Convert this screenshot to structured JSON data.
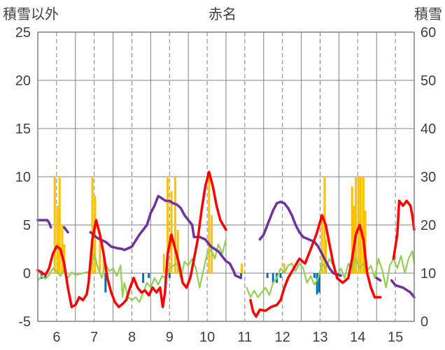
{
  "chart_data": {
    "type": "line",
    "title": "赤名",
    "left_axis_label": "積雪以外",
    "right_axis_label": "積雪",
    "ylim": [
      -5,
      25
    ],
    "yticks": [
      -5,
      0,
      5,
      10,
      15,
      20,
      25
    ],
    "y2lim": [
      0,
      60
    ],
    "y2ticks": [
      0,
      10,
      20,
      30,
      40,
      50,
      60
    ],
    "xlim": [
      5.5,
      15.5
    ],
    "x_tick_labels": [
      "6",
      "7",
      "8",
      "9",
      "10",
      "11",
      "12",
      "13",
      "14",
      "15"
    ],
    "x_tick_values": [
      6,
      7,
      8,
      9,
      10,
      11,
      12,
      13,
      14,
      15
    ],
    "grid": true,
    "colors": {
      "temperature": "#ff0000",
      "series_green": "#92d050",
      "snow_depth": "#7030a0",
      "bars_positive": "#ffc000",
      "bars_negative": "#0070c0",
      "grid": "#808080",
      "axis_text": "#404040"
    },
    "series": [
      {
        "key": "temperature",
        "axis": "left",
        "points": [
          [
            5.5,
            0.3
          ],
          [
            5.6,
            0.1
          ],
          [
            5.7,
            -0.2
          ],
          [
            5.8,
            0.5
          ],
          [
            5.9,
            2.0
          ],
          [
            6.0,
            2.8
          ],
          [
            6.1,
            2.5
          ],
          [
            6.2,
            1.0
          ],
          [
            6.3,
            -1.5
          ],
          [
            6.4,
            -3.5
          ],
          [
            6.5,
            -3.3
          ],
          [
            6.6,
            -2.5
          ],
          [
            6.7,
            -2.8
          ],
          [
            6.8,
            -2.2
          ],
          [
            6.85,
            -1.0
          ],
          [
            6.95,
            3.5
          ],
          [
            7.05,
            5.5
          ],
          [
            7.15,
            4.0
          ],
          [
            7.25,
            2.0
          ],
          [
            7.35,
            -0.5
          ],
          [
            7.45,
            -2.0
          ],
          [
            7.55,
            -3.0
          ],
          [
            7.65,
            -3.5
          ],
          [
            7.75,
            -3.2
          ],
          [
            7.85,
            -2.8
          ],
          [
            7.95,
            -1.5
          ],
          [
            8.05,
            -0.5
          ],
          [
            8.15,
            -1.5
          ],
          [
            8.25,
            -2.0
          ],
          [
            8.35,
            -1.8
          ],
          [
            8.45,
            -2.3
          ],
          [
            8.55,
            -1.5
          ],
          [
            8.65,
            -2.0
          ],
          [
            8.75,
            -1.5
          ],
          [
            8.82,
            -3.5
          ],
          [
            8.88,
            -2.0
          ],
          [
            8.95,
            2.0
          ],
          [
            9.05,
            4.0
          ],
          [
            9.15,
            2.5
          ],
          [
            9.25,
            1.0
          ],
          [
            9.35,
            -1.0
          ],
          [
            9.45,
            -1.5
          ],
          [
            9.55,
            -0.5
          ],
          [
            9.65,
            1.5
          ],
          [
            9.75,
            3.5
          ],
          [
            9.85,
            6.5
          ],
          [
            9.95,
            9.0
          ],
          [
            10.05,
            10.5
          ],
          [
            10.15,
            9.0
          ],
          [
            10.25,
            7.0
          ],
          [
            10.35,
            5.5
          ],
          [
            10.5,
            4.5
          ],
          [
            11.15,
            -2.8
          ],
          [
            11.22,
            -4.0
          ],
          [
            11.3,
            -4.5
          ],
          [
            11.4,
            -3.8
          ],
          [
            11.55,
            -3.9
          ],
          [
            11.7,
            -3.5
          ],
          [
            11.85,
            -3.3
          ],
          [
            11.95,
            -2.8
          ],
          [
            12.05,
            -1.5
          ],
          [
            12.15,
            -0.5
          ],
          [
            12.3,
            0.5
          ],
          [
            12.45,
            1.5
          ],
          [
            12.6,
            1.0
          ],
          [
            12.75,
            2.5
          ],
          [
            12.9,
            4.0
          ],
          [
            13.05,
            6.0
          ],
          [
            13.15,
            5.0
          ],
          [
            13.25,
            3.0
          ],
          [
            13.35,
            1.0
          ],
          [
            13.45,
            -0.5
          ],
          [
            13.6,
            -1.0
          ],
          [
            13.75,
            -0.5
          ],
          [
            13.85,
            1.5
          ],
          [
            13.95,
            4.0
          ],
          [
            14.05,
            5.0
          ],
          [
            14.15,
            3.5
          ],
          [
            14.25,
            0.0
          ],
          [
            14.35,
            -1.5
          ],
          [
            14.45,
            -2.5
          ],
          [
            14.6,
            -2.5
          ],
          [
            14.95,
            1.5
          ],
          [
            15.05,
            4.0
          ],
          [
            15.1,
            7.5
          ],
          [
            15.2,
            7.0
          ],
          [
            15.3,
            7.5
          ],
          [
            15.4,
            7.0
          ],
          [
            15.45,
            6.0
          ],
          [
            15.5,
            4.5
          ]
        ]
      },
      {
        "key": "series_green",
        "axis": "left",
        "points": [
          [
            5.5,
            -0.8
          ],
          [
            5.6,
            -0.3
          ],
          [
            5.7,
            -0.6
          ],
          [
            5.8,
            -0.2
          ],
          [
            5.9,
            0.5
          ],
          [
            6.0,
            0.2
          ],
          [
            6.1,
            -0.3
          ],
          [
            6.2,
            0.3
          ],
          [
            6.3,
            -0.5
          ],
          [
            6.4,
            0.1
          ],
          [
            6.5,
            -0.2
          ],
          [
            6.7,
            0.0
          ],
          [
            6.9,
            0.2
          ],
          [
            7.0,
            2.0
          ],
          [
            7.1,
            0.5
          ],
          [
            7.2,
            -0.5
          ],
          [
            7.3,
            1.0
          ],
          [
            7.4,
            0.2
          ],
          [
            7.5,
            0.5
          ],
          [
            7.6,
            -0.3
          ],
          [
            7.7,
            0.8
          ],
          [
            7.75,
            -2.5
          ],
          [
            7.8,
            -1.0
          ],
          [
            7.9,
            -2.5
          ],
          [
            8.0,
            -2.8
          ],
          [
            8.1,
            -2.5
          ],
          [
            8.2,
            -3.0
          ],
          [
            8.3,
            -2.0
          ],
          [
            8.4,
            -1.0
          ],
          [
            8.5,
            -1.5
          ],
          [
            8.6,
            -0.5
          ],
          [
            8.7,
            -1.2
          ],
          [
            8.8,
            -0.3
          ],
          [
            8.9,
            -0.5
          ],
          [
            9.0,
            0.5
          ],
          [
            9.1,
            0.8
          ],
          [
            9.2,
            1.0
          ],
          [
            9.3,
            -0.5
          ],
          [
            9.4,
            1.2
          ],
          [
            9.5,
            0.8
          ],
          [
            9.6,
            1.5
          ],
          [
            9.7,
            0.5
          ],
          [
            9.8,
            -1.5
          ],
          [
            9.9,
            0.3
          ],
          [
            10.0,
            2.0
          ],
          [
            10.1,
            2.5
          ],
          [
            10.2,
            1.5
          ],
          [
            10.3,
            3.0
          ],
          [
            10.4,
            2.0
          ],
          [
            10.5,
            3.5
          ],
          [
            11.05,
            -1.5
          ],
          [
            11.15,
            -2.5
          ],
          [
            11.25,
            -1.8
          ],
          [
            11.35,
            -2.5
          ],
          [
            11.45,
            -2.0
          ],
          [
            11.55,
            -1.5
          ],
          [
            11.65,
            -2.3
          ],
          [
            11.75,
            -1.0
          ],
          [
            11.85,
            -0.5
          ],
          [
            11.95,
            0.5
          ],
          [
            12.05,
            0.0
          ],
          [
            12.15,
            0.8
          ],
          [
            12.25,
            1.0
          ],
          [
            12.35,
            0.2
          ],
          [
            12.45,
            1.0
          ],
          [
            12.55,
            0.5
          ],
          [
            12.65,
            -1.0
          ],
          [
            12.75,
            -0.3
          ],
          [
            12.85,
            -1.2
          ],
          [
            12.95,
            -0.5
          ],
          [
            13.05,
            1.0
          ],
          [
            13.15,
            0.5
          ],
          [
            13.25,
            1.5
          ],
          [
            13.35,
            0.8
          ],
          [
            13.45,
            -0.3
          ],
          [
            13.55,
            0.5
          ],
          [
            13.65,
            -0.5
          ],
          [
            13.75,
            1.0
          ],
          [
            13.85,
            0.3
          ],
          [
            13.95,
            1.5
          ],
          [
            14.05,
            0.5
          ],
          [
            14.15,
            1.0
          ],
          [
            14.25,
            0.2
          ],
          [
            14.35,
            0.8
          ],
          [
            14.45,
            -0.5
          ],
          [
            14.55,
            1.5
          ],
          [
            14.65,
            0.3
          ],
          [
            14.75,
            -1.5
          ],
          [
            14.85,
            0.8
          ],
          [
            14.95,
            1.5
          ],
          [
            15.05,
            0.5
          ],
          [
            15.15,
            1.8
          ],
          [
            15.25,
            0.0
          ],
          [
            15.35,
            1.5
          ],
          [
            15.45,
            2.3
          ],
          [
            15.5,
            1.0
          ]
        ]
      },
      {
        "key": "snow_depth",
        "axis": "right",
        "points": [
          [
            5.5,
            21
          ],
          [
            5.75,
            21
          ],
          [
            5.8,
            20.5
          ],
          [
            5.85,
            19.5
          ],
          [
            6.2,
            19.5
          ],
          [
            6.3,
            18.5
          ],
          [
            6.9,
            18.5
          ],
          [
            7.05,
            17.5
          ],
          [
            7.15,
            17.0
          ],
          [
            7.3,
            16.5
          ],
          [
            7.45,
            15.5
          ],
          [
            7.6,
            15.2
          ],
          [
            7.75,
            15.0
          ],
          [
            7.8,
            14.8
          ],
          [
            8.0,
            15.5
          ],
          [
            8.2,
            18.0
          ],
          [
            8.4,
            20.0
          ],
          [
            8.5,
            22.5
          ],
          [
            8.6,
            24.0
          ],
          [
            8.7,
            26.0
          ],
          [
            8.8,
            25.5
          ],
          [
            8.9,
            25.0
          ],
          [
            9.0,
            25.0
          ],
          [
            9.1,
            24.5
          ],
          [
            9.2,
            24.2
          ],
          [
            9.3,
            23.5
          ],
          [
            9.4,
            22.0
          ],
          [
            9.5,
            21.0
          ],
          [
            9.55,
            20.5
          ],
          [
            9.6,
            20.0
          ],
          [
            9.65,
            17.5
          ],
          [
            9.8,
            17.5
          ],
          [
            9.95,
            17.0
          ],
          [
            10.0,
            16.5
          ],
          [
            10.1,
            15.5
          ],
          [
            10.3,
            14.5
          ],
          [
            10.45,
            13.0
          ],
          [
            10.5,
            12.5
          ],
          [
            10.6,
            12.0
          ],
          [
            10.7,
            10.5
          ],
          [
            10.75,
            9.5
          ],
          [
            10.9,
            9.0
          ],
          [
            11.4,
            17.0
          ],
          [
            11.5,
            18.0
          ],
          [
            11.65,
            21.0
          ],
          [
            11.75,
            23.0
          ],
          [
            11.85,
            24.5
          ],
          [
            11.95,
            24.8
          ],
          [
            12.05,
            24.5
          ],
          [
            12.15,
            23.5
          ],
          [
            12.25,
            22.0
          ],
          [
            12.35,
            20.0
          ],
          [
            12.45,
            18.5
          ],
          [
            12.55,
            17.5
          ],
          [
            12.7,
            17.0
          ],
          [
            12.85,
            16.5
          ],
          [
            12.95,
            15.5
          ],
          [
            13.05,
            14.0
          ],
          [
            13.15,
            12.5
          ],
          [
            13.25,
            11.0
          ],
          [
            13.35,
            10.0
          ],
          [
            13.55,
            9.5
          ],
          [
            14.0,
            9.0
          ],
          [
            14.5,
            9.0
          ],
          [
            14.6,
            8.5
          ],
          [
            14.9,
            8.5
          ],
          [
            15.0,
            7.5
          ],
          [
            15.2,
            7.0
          ],
          [
            15.4,
            6.0
          ],
          [
            15.5,
            5.0
          ]
        ]
      }
    ],
    "bars": {
      "axis": "left",
      "positive": [
        [
          5.95,
          10.0
        ],
        [
          6.02,
          7.0
        ],
        [
          6.08,
          10.0
        ],
        [
          6.15,
          5.0
        ],
        [
          6.2,
          3.0
        ],
        [
          6.95,
          10.0
        ],
        [
          7.02,
          8.0
        ],
        [
          7.15,
          3.5
        ],
        [
          7.25,
          1.5
        ],
        [
          8.85,
          2.0
        ],
        [
          8.95,
          10.0
        ],
        [
          9.05,
          8.5
        ],
        [
          9.15,
          10.0
        ],
        [
          9.22,
          4.5
        ],
        [
          10.05,
          10.0
        ],
        [
          10.12,
          6.0
        ],
        [
          10.92,
          1.0
        ],
        [
          12.05,
          1.0
        ],
        [
          13.05,
          6.0
        ],
        [
          13.12,
          10.0
        ],
        [
          13.15,
          3.5
        ],
        [
          13.85,
          9.0
        ],
        [
          13.9,
          7.0
        ],
        [
          13.95,
          10.0
        ],
        [
          14.02,
          10.0
        ],
        [
          14.08,
          10.0
        ],
        [
          14.15,
          10.0
        ],
        [
          14.2,
          6.5
        ]
      ],
      "negative": [
        [
          5.6,
          -0.6
        ],
        [
          5.7,
          -0.5
        ],
        [
          7.3,
          -2.0
        ],
        [
          8.3,
          -1.0
        ],
        [
          8.45,
          -0.5
        ],
        [
          9.0,
          -0.5
        ],
        [
          10.9,
          -0.5
        ],
        [
          11.6,
          -0.5
        ],
        [
          11.75,
          -1.0
        ],
        [
          11.85,
          -1.0
        ],
        [
          11.95,
          -0.5
        ],
        [
          12.85,
          -0.5
        ],
        [
          12.92,
          -2.2
        ],
        [
          12.98,
          -2.0
        ]
      ]
    }
  }
}
